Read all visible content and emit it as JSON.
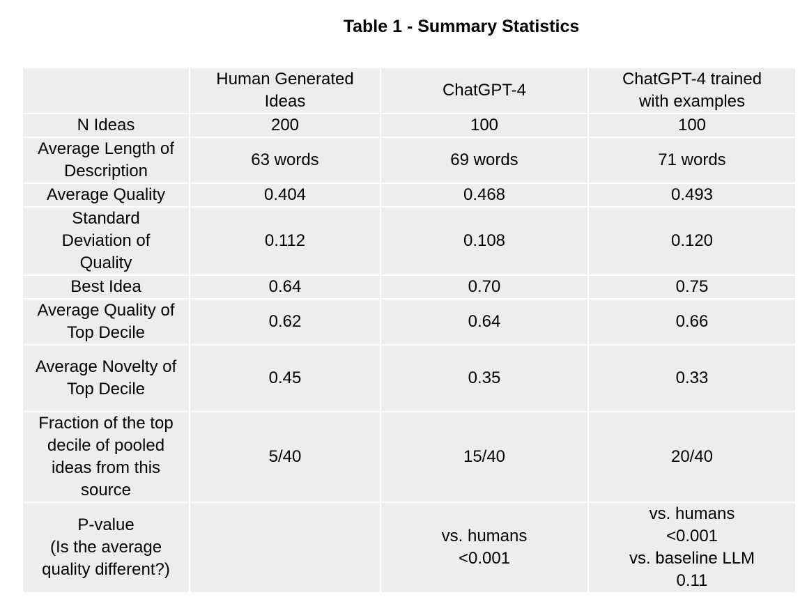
{
  "title": "Table 1 - Summary Statistics",
  "table": {
    "columns": [
      "",
      "Human Generated Ideas",
      "ChatGPT-4",
      "ChatGPT-4 trained with examples"
    ],
    "rows": [
      {
        "label": "N Ideas",
        "values": [
          "200",
          "100",
          "100"
        ]
      },
      {
        "label": "Average Length of Description",
        "values": [
          "63 words",
          "69 words",
          "71 words"
        ]
      },
      {
        "label": "Average Quality",
        "values": [
          "0.404",
          "0.468",
          "0.493"
        ]
      },
      {
        "label": "Standard Deviation of Quality",
        "values": [
          "0.112",
          "0.108",
          "0.120"
        ]
      },
      {
        "label": "Best Idea",
        "values": [
          "0.64",
          "0.70",
          "0.75"
        ]
      },
      {
        "label": "Average Quality of Top Decile",
        "values": [
          "0.62",
          "0.64",
          "0.66"
        ]
      },
      {
        "label": "Average Novelty of Top Decile",
        "values": [
          "0.45",
          "0.35",
          "0.33"
        ]
      },
      {
        "label": "Fraction of the top decile of pooled ideas from this source",
        "values": [
          "5/40",
          "15/40",
          "20/40"
        ]
      }
    ],
    "pvalue": {
      "label_lines": [
        "P-value",
        "(Is the average",
        "quality different?)"
      ],
      "human": "",
      "chatgpt_lines": [
        "vs. humans",
        "<0.001"
      ],
      "trained_lines": [
        "vs. humans",
        "<0.001",
        "vs. baseline LLM",
        "0.11"
      ]
    }
  }
}
